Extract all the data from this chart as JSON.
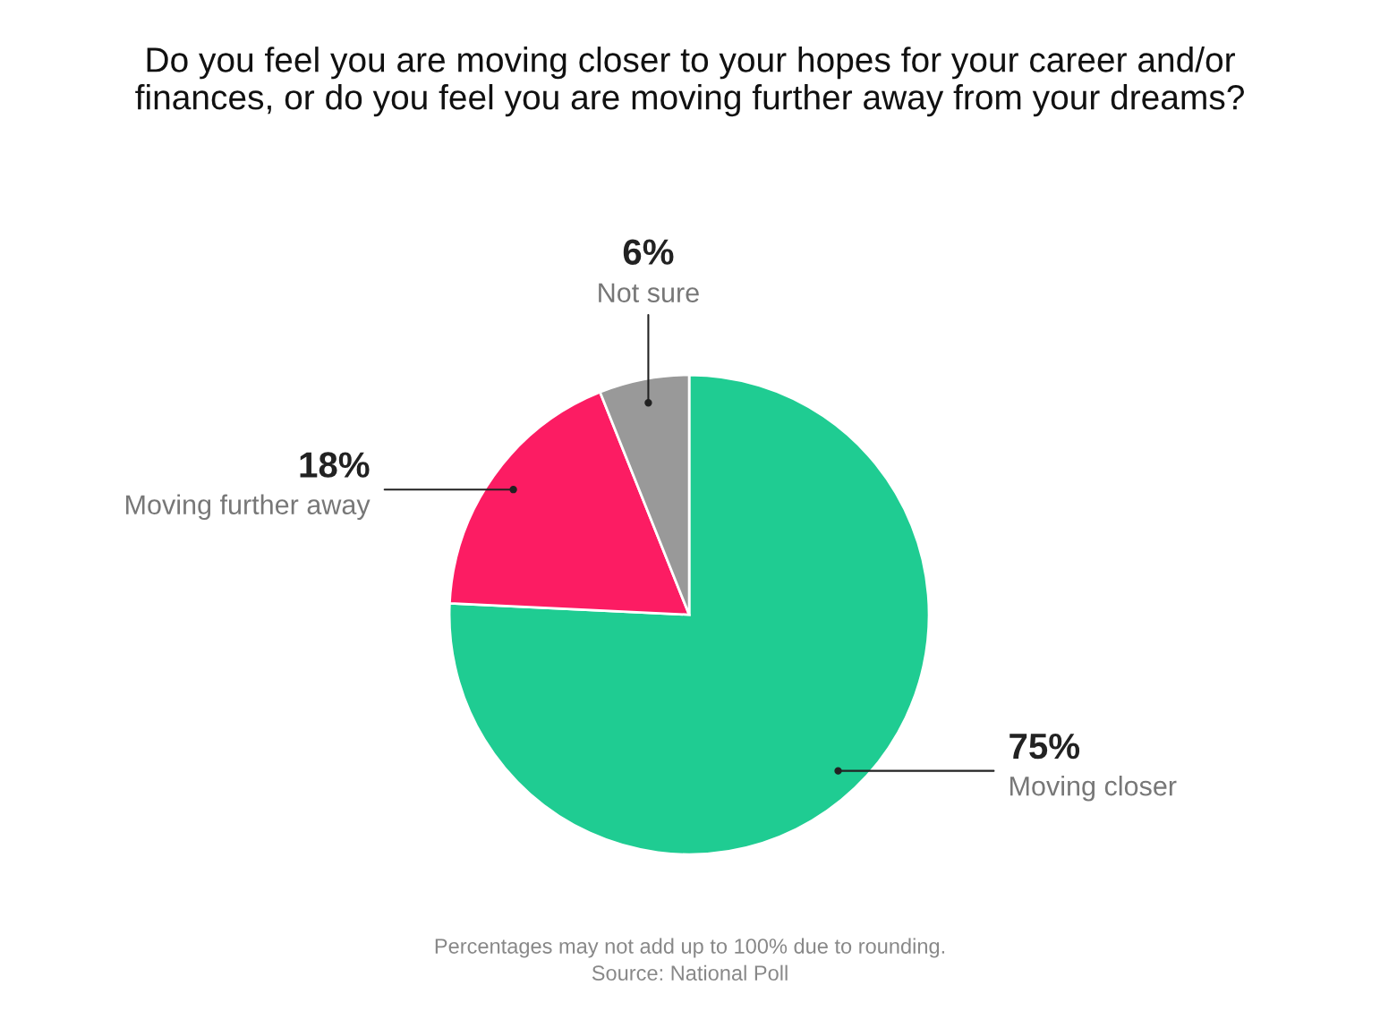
{
  "chart_data": {
    "type": "pie",
    "title": "Do you feel you are moving closer to your hopes for your career and/or\nfinances, or do you feel you are moving further away from your dreams?",
    "categories": [
      "Moving closer",
      "Moving further away",
      "Not sure"
    ],
    "values": [
      75,
      18,
      6
    ],
    "value_labels": [
      "75%",
      "18%",
      "6%"
    ],
    "colors": [
      "#1fcc92",
      "#fc1c63",
      "#999999"
    ],
    "annotations": [
      "Percentages may not add up to 100% due to rounding.",
      "Source: National Poll"
    ]
  }
}
